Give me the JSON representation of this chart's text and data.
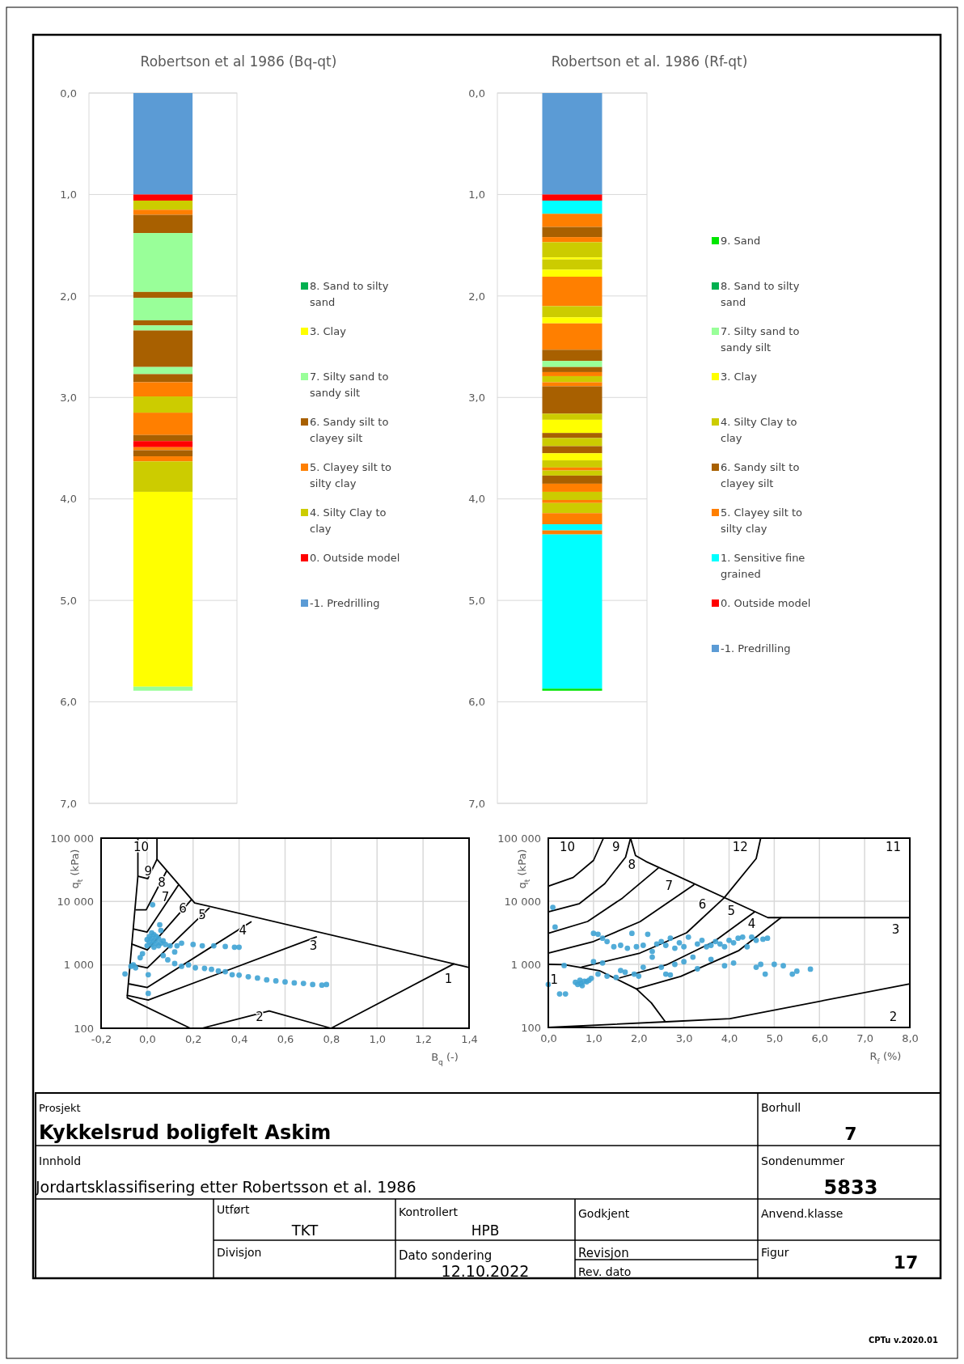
{
  "chart_data": [
    {
      "type": "bar",
      "title": "Robertson et al 1986 (Bq-qt)",
      "categories": [
        null
      ],
      "stacked": true,
      "grid": "y",
      "legend": "right",
      "ylim": [
        7,
        0
      ],
      "yticks": [
        {
          "value": 0,
          "label": "0,0"
        },
        {
          "value": 1,
          "label": "1,0"
        },
        {
          "value": 2,
          "label": "2,0"
        },
        {
          "value": 3,
          "label": "3,0"
        },
        {
          "value": 4,
          "label": "4,0"
        },
        {
          "value": 5,
          "label": "5,0"
        },
        {
          "value": 6,
          "label": "6,0"
        },
        {
          "value": 7,
          "label": "7,0"
        }
      ],
      "series": [
        {
          "name": "-1. Predrilling",
          "color": "#5b9bd5",
          "values": [
            1.0
          ]
        },
        {
          "name": "0. Outside model",
          "color": "#ff0000",
          "values": [
            0.06
          ]
        },
        {
          "name": "4. Silty Clay to clay",
          "color": "#cccc00",
          "values": [
            0.09
          ]
        },
        {
          "name": "5. Clayey silt to silty clay",
          "color": "#ff7f00",
          "values": [
            0.05
          ]
        },
        {
          "name": "6. Sandy silt to clayey silt",
          "color": "#a86000",
          "values": [
            0.18
          ]
        },
        {
          "name": "7. Silty sand to sandy silt",
          "color": "#99ff99",
          "values": [
            0.58
          ]
        },
        {
          "color": "#a86000",
          "values": [
            0.06
          ]
        },
        {
          "color": "#99ff99",
          "values": [
            0.22
          ]
        },
        {
          "color": "#a86000",
          "values": [
            0.05
          ]
        },
        {
          "color": "#99ff99",
          "values": [
            0.05
          ]
        },
        {
          "color": "#a86000",
          "values": [
            0.36
          ]
        },
        {
          "color": "#99ff99",
          "values": [
            0.07
          ]
        },
        {
          "color": "#a86000",
          "values": [
            0.08
          ]
        },
        {
          "color": "#ff7f00",
          "values": [
            0.14
          ]
        },
        {
          "color": "#cccc00",
          "values": [
            0.16
          ]
        },
        {
          "color": "#ff7f00",
          "values": [
            0.22
          ]
        },
        {
          "color": "#a86000",
          "values": [
            0.06
          ]
        },
        {
          "color": "#ff0000",
          "values": [
            0.06
          ]
        },
        {
          "color": "#ff7f00",
          "values": [
            0.03
          ]
        },
        {
          "color": "#a86000",
          "values": [
            0.06
          ]
        },
        {
          "color": "#ff7f00",
          "values": [
            0.05
          ]
        },
        {
          "color": "#cccc00",
          "values": [
            0.3
          ]
        },
        {
          "name": "3. Clay",
          "color": "#ffff00",
          "values": [
            1.92
          ]
        },
        {
          "color": "#99ff99",
          "values": [
            0.04
          ]
        },
        {
          "name": "8. Sand to silty sand",
          "color": "#00b050",
          "values": [
            0
          ]
        }
      ]
    },
    {
      "type": "bar",
      "title": "Robertson et al. 1986 (Rf-qt)",
      "categories": [
        null
      ],
      "stacked": true,
      "grid": "y",
      "legend": "right",
      "ylim": [
        7,
        0
      ],
      "yticks": [
        {
          "value": 0,
          "label": "0,0"
        },
        {
          "value": 1,
          "label": "1,0"
        },
        {
          "value": 2,
          "label": "2,0"
        },
        {
          "value": 3,
          "label": "3,0"
        },
        {
          "value": 4,
          "label": "4,0"
        },
        {
          "value": 5,
          "label": "5,0"
        },
        {
          "value": 6,
          "label": "6,0"
        },
        {
          "value": 7,
          "label": "7,0"
        }
      ],
      "series": [
        {
          "name": "-1. Predrilling",
          "color": "#5b9bd5",
          "values": [
            1.0
          ]
        },
        {
          "name": "0. Outside model",
          "color": "#ff0000",
          "values": [
            0.06
          ]
        },
        {
          "name": "1. Sensitive fine grained",
          "color": "#00ffff",
          "values": [
            0.13
          ]
        },
        {
          "name": "5. Clayey silt to silty clay",
          "color": "#ff7f00",
          "values": [
            0.13
          ]
        },
        {
          "name": "6. Sandy silt to clayey silt",
          "color": "#a86000",
          "values": [
            0.1
          ]
        },
        {
          "color": "#ff7f00",
          "values": [
            0.05
          ]
        },
        {
          "name": "4. Silty Clay to clay",
          "color": "#cccc00",
          "values": [
            0.15
          ]
        },
        {
          "name": "3. Clay",
          "color": "#ffff00",
          "values": [
            0.02
          ]
        },
        {
          "color": "#cccc00",
          "values": [
            0.1
          ]
        },
        {
          "color": "#ffff00",
          "values": [
            0.07
          ]
        },
        {
          "color": "#ff7f00",
          "values": [
            0.29
          ]
        },
        {
          "color": "#cccc00",
          "values": [
            0.11
          ]
        },
        {
          "color": "#ffff00",
          "values": [
            0.06
          ]
        },
        {
          "color": "#ff7f00",
          "values": [
            0.26
          ]
        },
        {
          "color": "#a86000",
          "values": [
            0.11
          ]
        },
        {
          "name": "7. Silty sand to sandy silt",
          "color": "#99ff99",
          "values": [
            0.06
          ]
        },
        {
          "name": "8. Sand to silty sand",
          "color": "#00b050",
          "values": [
            0
          ]
        },
        {
          "color": "#a86000",
          "values": [
            0.05
          ]
        },
        {
          "color": "#ff7f00",
          "values": [
            0.04
          ]
        },
        {
          "color": "#cccc00",
          "values": [
            0.06
          ]
        },
        {
          "color": "#ff7f00",
          "values": [
            0.04
          ]
        },
        {
          "color": "#a86000",
          "values": [
            0.27
          ]
        },
        {
          "color": "#cccc00",
          "values": [
            0.06
          ]
        },
        {
          "color": "#ffff00",
          "values": [
            0.13
          ]
        },
        {
          "color": "#a86000",
          "values": [
            0.05
          ]
        },
        {
          "color": "#cccc00",
          "values": [
            0.08
          ]
        },
        {
          "color": "#a86000",
          "values": [
            0.07
          ]
        },
        {
          "color": "#ffff00",
          "values": [
            0.07
          ]
        },
        {
          "color": "#cccc00",
          "values": [
            0.07
          ]
        },
        {
          "color": "#ff7f00",
          "values": [
            0.03
          ]
        },
        {
          "color": "#cccc00",
          "values": [
            0.05
          ]
        },
        {
          "color": "#a86000",
          "values": [
            0.08
          ]
        },
        {
          "color": "#ff7f00",
          "values": [
            0.08
          ]
        },
        {
          "color": "#cccc00",
          "values": [
            0.08
          ]
        },
        {
          "color": "#ff7f00",
          "values": [
            0.03
          ]
        },
        {
          "color": "#cccc00",
          "values": [
            0.1
          ]
        },
        {
          "color": "#ff7f00",
          "values": [
            0.11
          ]
        },
        {
          "color": "#00ffff",
          "values": [
            0.06
          ]
        },
        {
          "color": "#ff7f00",
          "values": [
            0.04
          ]
        },
        {
          "color": "#00ffff",
          "values": [
            1.52
          ]
        },
        {
          "name": "9. Sand",
          "color": "#00e600",
          "values": [
            0.02
          ]
        }
      ]
    },
    {
      "type": "scatter",
      "xlabel": "B$_{q}$ (-)",
      "ylabel": "q$_{t}$ (kPa)",
      "log": "y",
      "grid": true,
      "xlim": [
        -0.2,
        1.4
      ],
      "ylim": [
        100,
        100000
      ],
      "xticks": [
        {
          "value": -0.2,
          "label": "-0,2"
        },
        {
          "value": 0,
          "label": "0,0"
        },
        {
          "value": 0.2,
          "label": "0,2"
        },
        {
          "value": 0.4,
          "label": "0,4"
        },
        {
          "value": 0.6,
          "label": "0,6"
        },
        {
          "value": 0.8,
          "label": "0,8"
        },
        {
          "value": 1,
          "label": "1,0"
        },
        {
          "value": 1.2,
          "label": "1,2"
        },
        {
          "value": 1.4,
          "label": "1,4"
        }
      ],
      "yticks": [
        {
          "value": 100,
          "label": "100"
        },
        {
          "value": 1000,
          "label": "1 000"
        },
        {
          "value": 10000,
          "label": "10 000"
        },
        {
          "value": 100000,
          "label": "100 000"
        }
      ],
      "annotations": [
        "10",
        "9",
        "8",
        "7",
        "6",
        "5",
        "4",
        "3",
        "2",
        "1"
      ],
      "series": [
        {
          "type": "line",
          "color": "#000000",
          "x": [
            -0.04,
            -0.04,
            -0.086,
            -0.086,
            0.188
          ],
          "values": [
            100000,
            25100,
            330,
            302,
            100
          ]
        },
        {
          "type": "line",
          "color": "#000000",
          "x": [
            0.043,
            0.043,
            0.207,
            1.4
          ],
          "values": [
            100000,
            46400,
            9500,
            912
          ]
        },
        {
          "type": "line",
          "color": "#000000",
          "x": [
            0.238,
            0.531,
            0.8,
            1.334
          ],
          "values": [
            100,
            188,
            100,
            1040
          ]
        },
        {
          "type": "line",
          "color": "#000000",
          "x": [
            -0.039,
            0.003,
            0.043
          ],
          "values": [
            25100,
            22900,
            46400
          ]
        },
        {
          "type": "line",
          "color": "#000000",
          "x": [
            -0.048,
            -0.004,
            0.085
          ],
          "values": [
            7400,
            7400,
            30400
          ]
        },
        {
          "type": "line",
          "color": "#000000",
          "x": [
            -0.058,
            0,
            0.135
          ],
          "values": [
            3680,
            3300,
            17900
          ]
        },
        {
          "type": "line",
          "color": "#000000",
          "x": [
            -0.067,
            0.001,
            0.191
          ],
          "values": [
            2130,
            1720,
            10500
          ]
        },
        {
          "type": "line",
          "color": "#000000",
          "x": [
            -0.074,
            0.001,
            0.27
          ],
          "values": [
            1020,
            895,
            7900
          ]
        },
        {
          "type": "line",
          "color": "#000000",
          "x": [
            -0.077,
            0.001,
            0.452
          ],
          "values": [
            500,
            440,
            4770
          ]
        },
        {
          "type": "line",
          "color": "#000000",
          "x": [
            -0.086,
            0.005,
            0.736
          ],
          "values": [
            330,
            278,
            2760
          ]
        },
        {
          "type": "scatter",
          "color": "#3fa3d4",
          "marker": "circle",
          "x": [
            0.024,
            0.055,
            0.06,
            0.02,
            0.03,
            0.01,
            0.04,
            0.02,
            0.05,
            0.0,
            0.03,
            0.07,
            0.01,
            0.04,
            0.06,
            0.02,
            0.08,
            0.0,
            0.05,
            0.1,
            0.03,
            0.13,
            0.15,
            0.2,
            0.24,
            0.29,
            0.34,
            0.38,
            0.4,
            0.12,
            -0.02,
            -0.03,
            0.07,
            0.09,
            0.12,
            0.15,
            0.18,
            0.21,
            0.25,
            0.28,
            0.31,
            0.34,
            0.37,
            0.4,
            0.44,
            0.48,
            0.52,
            0.56,
            0.6,
            0.64,
            0.68,
            0.72,
            0.76,
            0.78,
            -0.05,
            -0.07,
            -0.096,
            0.005,
            0.005,
            -0.06
          ],
          "values": [
            8900,
            4300,
            3500,
            3200,
            3000,
            2800,
            2800,
            2600,
            2600,
            2500,
            2400,
            2400,
            2300,
            2200,
            2200,
            2100,
            2100,
            2000,
            2000,
            2000,
            1900,
            2000,
            2200,
            2100,
            2000,
            2000,
            1950,
            1900,
            1900,
            1600,
            1500,
            1300,
            1400,
            1200,
            1050,
            950,
            1000,
            900,
            880,
            850,
            800,
            780,
            700,
            690,
            650,
            620,
            580,
            560,
            540,
            520,
            510,
            490,
            480,
            490,
            900,
            950,
            720,
            700,
            355,
            1000
          ]
        }
      ]
    },
    {
      "type": "scatter",
      "xlabel": "R$_{f}$ (%)",
      "ylabel": "q$_{t}$ (kPa)",
      "log": "y",
      "grid": true,
      "xlim": [
        0,
        8
      ],
      "ylim": [
        100,
        100000
      ],
      "xticks": [
        {
          "value": 0,
          "label": "0,0"
        },
        {
          "value": 1,
          "label": "1,0"
        },
        {
          "value": 2,
          "label": "2,0"
        },
        {
          "value": 3,
          "label": "3,0"
        },
        {
          "value": 4,
          "label": "4,0"
        },
        {
          "value": 5,
          "label": "5,0"
        },
        {
          "value": 6,
          "label": "6,0"
        },
        {
          "value": 7,
          "label": "7,0"
        },
        {
          "value": 8,
          "label": "8,0"
        }
      ],
      "yticks": [
        {
          "value": 100,
          "label": "100"
        },
        {
          "value": 1000,
          "label": "1 000"
        },
        {
          "value": 10000,
          "label": "10 000"
        },
        {
          "value": 100000,
          "label": "100 000"
        }
      ],
      "annotations": [
        "10",
        "9",
        "8",
        "7",
        "6",
        "12",
        "11",
        "5",
        "4",
        "3",
        "2",
        "1"
      ],
      "series": [
        {
          "type": "line",
          "color": "#000000",
          "x": [
            0,
            0.55,
            1.0,
            1.22
          ],
          "values": [
            17300,
            23800,
            44400,
            100000
          ]
        },
        {
          "type": "line",
          "color": "#000000",
          "x": [
            0,
            0.68,
            1.25,
            1.71,
            1.82
          ],
          "values": [
            6800,
            9100,
            19000,
            50000,
            100000
          ]
        },
        {
          "type": "line",
          "color": "#000000",
          "x": [
            0,
            0.87,
            1.64,
            2.43
          ],
          "values": [
            3100,
            4780,
            11200,
            33400
          ]
        },
        {
          "type": "line",
          "color": "#000000",
          "x": [
            0,
            1.0,
            2.03,
            3.22
          ],
          "values": [
            1510,
            2300,
            4750,
            18200
          ]
        },
        {
          "type": "line",
          "color": "#000000",
          "x": [
            1.82,
            1.93,
            2.16,
            4.86,
            8.0
          ],
          "values": [
            100000,
            53000,
            42700,
            5500,
            5500
          ]
        },
        {
          "type": "line",
          "color": "#000000",
          "x": [
            0.74,
            2.03,
            3.06,
            3.89,
            4.6,
            4.7
          ],
          "values": [
            904,
            1510,
            3160,
            11300,
            47500,
            100000
          ]
        },
        {
          "type": "line",
          "color": "#000000",
          "x": [
            1.58,
            2.61,
            3.67,
            4.57
          ],
          "values": [
            610,
            980,
            2300,
            6800
          ]
        },
        {
          "type": "line",
          "color": "#000000",
          "x": [
            1.95,
            2.93,
            4.22,
            5.15
          ],
          "values": [
            408,
            645,
            1660,
            5500
          ]
        },
        {
          "type": "line",
          "color": "#000000",
          "x": [
            0,
            0.35,
            1.13,
            1.95,
            2.28,
            2.59
          ],
          "values": [
            1000,
            990,
            795,
            408,
            245,
            123
          ]
        },
        {
          "type": "line",
          "color": "#000000",
          "x": [
            0,
            2.61,
            4.02,
            8.0
          ],
          "values": [
            100,
            123,
            138,
            490
          ]
        },
        {
          "type": "scatter",
          "color": "#3fa3d4",
          "marker": "circle",
          "x": [
            0.1,
            0.15,
            0.0,
            0.25,
            0.38,
            0.35,
            0.6,
            0.65,
            0.7,
            0.72,
            0.75,
            0.8,
            0.85,
            0.9,
            0.95,
            1.0,
            1.1,
            1.2,
            1.3,
            1.45,
            1.6,
            1.75,
            1.85,
            1.95,
            2.1,
            2.2,
            2.3,
            2.4,
            2.5,
            2.6,
            2.7,
            2.8,
            2.9,
            3.0,
            3.1,
            3.2,
            3.3,
            3.4,
            3.5,
            3.6,
            3.7,
            3.8,
            3.9,
            4.0,
            4.1,
            4.2,
            4.3,
            4.4,
            4.5,
            4.6,
            4.75,
            4.85,
            1.0,
            1.2,
            1.1,
            1.3,
            1.5,
            1.7,
            1.9,
            2.1,
            2.3,
            2.5,
            2.6,
            2.8,
            3.0,
            3.3,
            3.6,
            3.9,
            4.1,
            4.6,
            4.7,
            4.8,
            5.0,
            5.2,
            5.4,
            5.5,
            5.8,
            1.6,
            2.0,
            2.7
          ],
          "values": [
            8000,
            3900,
            480,
            340,
            340,
            960,
            520,
            480,
            560,
            500,
            460,
            540,
            530,
            560,
            600,
            3100,
            3000,
            2600,
            2300,
            1900,
            2000,
            1800,
            3100,
            1900,
            2000,
            3000,
            1600,
            2100,
            2300,
            2000,
            2600,
            1800,
            2200,
            1900,
            2700,
            1300,
            2100,
            2400,
            1900,
            2000,
            2300,
            2100,
            1900,
            2400,
            2200,
            2600,
            2700,
            1900,
            2700,
            2400,
            2500,
            2600,
            1100,
            1050,
            700,
            650,
            620,
            750,
            700,
            900,
            1300,
            900,
            700,
            1000,
            1100,
            850,
            1200,
            950,
            1050,
            900,
            1000,
            700,
            1000,
            950,
            700,
            780,
            840,
            800,
            650,
            680
          ]
        }
      ]
    },
    {
      "type": "other",
      "annotations": [
        "Prosjekt",
        "Kykkelsrud boligfelt Askim",
        "Borhull",
        "7",
        "Innhold",
        "Jordartsklassifisering etter Robertsson et al. 1986",
        "Sondenummer",
        "5833",
        "Utført",
        "TKT",
        "Kontrollert",
        "HPB",
        "Godkjent",
        "Anvend.klasse",
        "Divisjon",
        "Dato sondering",
        "12.10.2022",
        "Revisjon",
        "Rev. dato",
        "Figur",
        "17",
        "CPTu v.2020.01"
      ]
    }
  ]
}
